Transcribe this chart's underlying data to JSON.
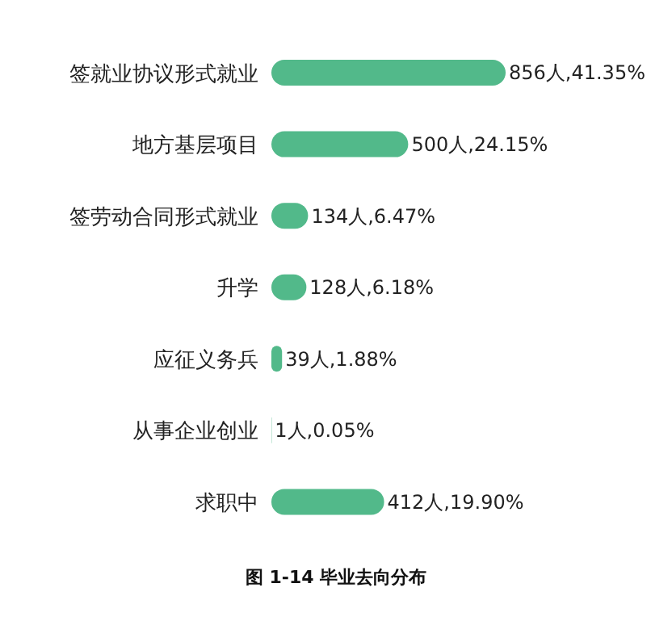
{
  "chart_data": {
    "type": "bar",
    "orientation": "horizontal",
    "title": "图 1-14 毕业去向分布",
    "categories": [
      "签就业协议形式就业",
      "地方基层项目",
      "签劳动合同形式就业",
      "升学",
      "应征义务兵",
      "从事企业创业",
      "求职中"
    ],
    "values": [
      856,
      500,
      134,
      128,
      39,
      1,
      412
    ],
    "value_labels": [
      "856人,41.35%",
      "500人,24.15%",
      "134人,6.47%",
      "128人,6.18%",
      "39人,1.88%",
      "1人,0.05%",
      "412人,19.90%"
    ],
    "color": "#52b98a"
  }
}
